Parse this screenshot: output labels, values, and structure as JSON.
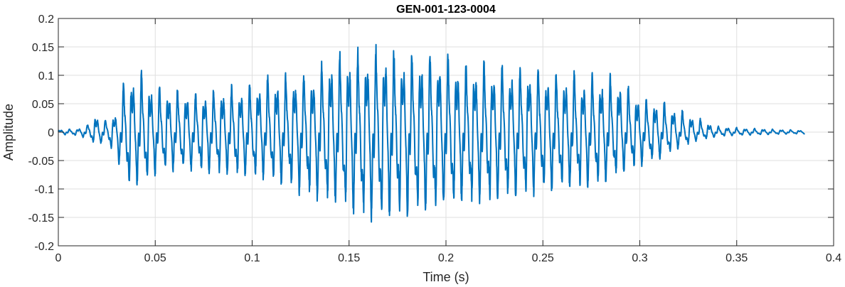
{
  "chart_data": {
    "type": "line",
    "title": "GEN-001-123-0004",
    "xlabel": "Time (s)",
    "ylabel": "Amplitude",
    "xlim": [
      0,
      0.4
    ],
    "ylim": [
      -0.2,
      0.2
    ],
    "grid": true,
    "xticks": [
      "0",
      "0.05",
      "0.1",
      "0.15",
      "0.2",
      "0.25",
      "0.3",
      "0.35",
      "0.4"
    ],
    "xtick_values": [
      0,
      0.05,
      0.1,
      0.15,
      0.2,
      0.25,
      0.3,
      0.35,
      0.4
    ],
    "yticks": [
      "0.2",
      "0.15",
      "0.1",
      "0.05",
      "0",
      "-0.05",
      "-0.1",
      "-0.15",
      "-0.2"
    ],
    "ytick_values": [
      0.2,
      0.15,
      0.1,
      0.05,
      0,
      -0.05,
      -0.1,
      -0.15,
      -0.2
    ],
    "series": [
      {
        "color": "#0072bd",
        "x": [
          0,
          0.005,
          0.01,
          0.015,
          0.018,
          0.02,
          0.025,
          0.03,
          0.033,
          0.035,
          0.04,
          0.045,
          0.05,
          0.06,
          0.07,
          0.08,
          0.09,
          0.1,
          0.11,
          0.12,
          0.13,
          0.14,
          0.15,
          0.16,
          0.165,
          0.17,
          0.18,
          0.19,
          0.2,
          0.21,
          0.22,
          0.23,
          0.24,
          0.25,
          0.26,
          0.27,
          0.28,
          0.29,
          0.3,
          0.31,
          0.32,
          0.33,
          0.34,
          0.35,
          0.36,
          0.37,
          0.385
        ],
        "envelope_upper": [
          0.004,
          0.005,
          0.006,
          0.012,
          0.035,
          0.03,
          0.02,
          0.035,
          0.075,
          0.1,
          0.11,
          0.1,
          0.08,
          0.075,
          0.07,
          0.075,
          0.08,
          0.085,
          0.1,
          0.1,
          0.105,
          0.13,
          0.14,
          0.14,
          0.155,
          0.145,
          0.14,
          0.14,
          0.14,
          0.12,
          0.12,
          0.12,
          0.115,
          0.11,
          0.105,
          0.1,
          0.1,
          0.095,
          0.06,
          0.055,
          0.04,
          0.025,
          0.01,
          0.008,
          0.006,
          0.005,
          0.003
        ],
        "envelope_lower": [
          -0.004,
          -0.005,
          -0.006,
          -0.012,
          -0.02,
          -0.025,
          -0.015,
          -0.05,
          -0.07,
          -0.1,
          -0.095,
          -0.09,
          -0.075,
          -0.07,
          -0.07,
          -0.075,
          -0.08,
          -0.08,
          -0.085,
          -0.1,
          -0.12,
          -0.13,
          -0.14,
          -0.16,
          -0.165,
          -0.155,
          -0.15,
          -0.145,
          -0.14,
          -0.13,
          -0.13,
          -0.125,
          -0.115,
          -0.11,
          -0.105,
          -0.1,
          -0.095,
          -0.08,
          -0.06,
          -0.05,
          -0.03,
          -0.015,
          -0.008,
          -0.006,
          -0.005,
          -0.004,
          -0.003
        ]
      }
    ]
  }
}
